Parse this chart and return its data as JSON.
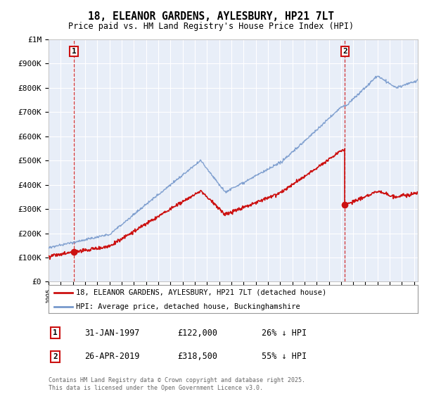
{
  "title": "18, ELEANOR GARDENS, AYLESBURY, HP21 7LT",
  "subtitle": "Price paid vs. HM Land Registry's House Price Index (HPI)",
  "background_color": "#ffffff",
  "plot_bg_color": "#e8eef8",
  "hpi_color": "#7799cc",
  "price_color": "#cc1111",
  "ylim": [
    0,
    1000000
  ],
  "xlim_start": 1995.0,
  "xlim_end": 2025.3,
  "sale1_year": 1997.08,
  "sale1_price": 122000,
  "sale2_year": 2019.32,
  "sale2_price": 318500,
  "legend_label1": "18, ELEANOR GARDENS, AYLESBURY, HP21 7LT (detached house)",
  "legend_label2": "HPI: Average price, detached house, Buckinghamshire",
  "annotation1_date": "31-JAN-1997",
  "annotation1_price": "£122,000",
  "annotation1_hpi": "26% ↓ HPI",
  "annotation2_date": "26-APR-2019",
  "annotation2_price": "£318,500",
  "annotation2_hpi": "55% ↓ HPI",
  "footer": "Contains HM Land Registry data © Crown copyright and database right 2025.\nThis data is licensed under the Open Government Licence v3.0."
}
